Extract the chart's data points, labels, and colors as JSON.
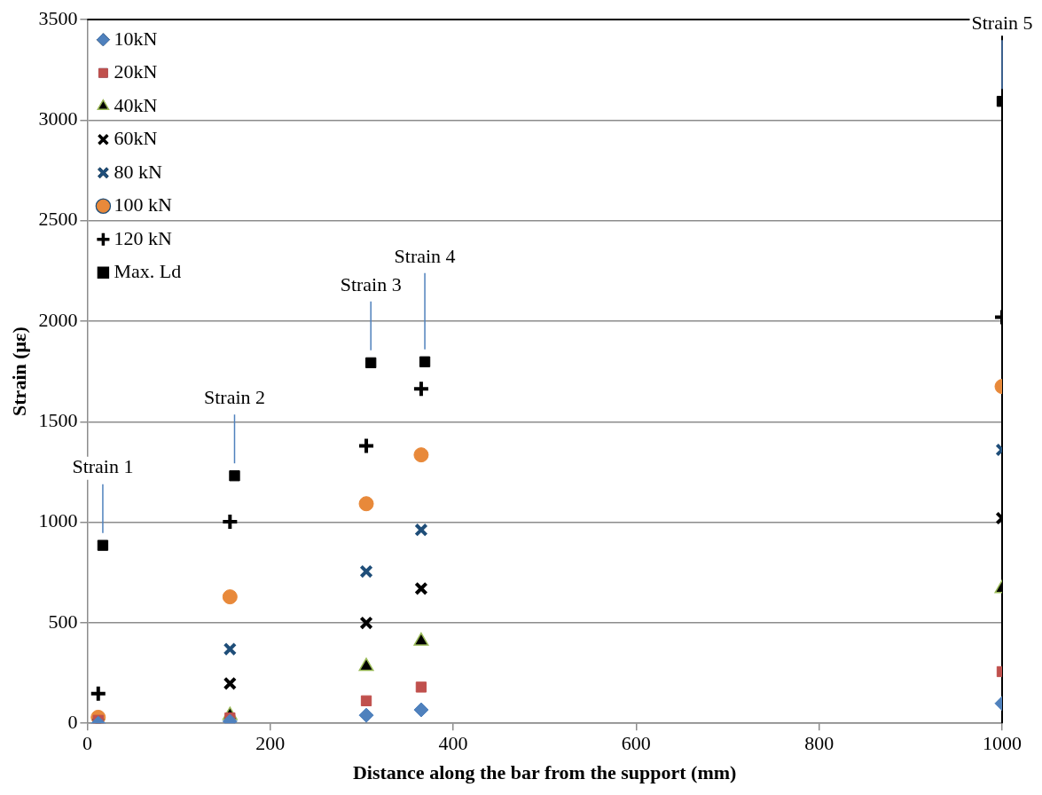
{
  "chart_data": {
    "type": "scatter",
    "xlabel": "Distance along the bar from the support (mm)",
    "ylabel": "Strain (με)",
    "xlim": [
      0,
      1000
    ],
    "xticks": [
      0,
      200,
      400,
      600,
      800,
      1000
    ],
    "ylim": [
      0,
      3500
    ],
    "yticks": [
      0,
      500,
      1000,
      1500,
      2000,
      2500,
      3000,
      3500
    ],
    "grid": "y",
    "legend": "top left",
    "series": [
      {
        "name": "10kN",
        "color": "#4f81bd",
        "marker": "diamond",
        "x": [
          12,
          156,
          305,
          365,
          1000
        ],
        "values": [
          0,
          10,
          40,
          67,
          99
        ]
      },
      {
        "name": "20kN",
        "color": "#c0504d",
        "marker": "square",
        "x": [
          12,
          156,
          305,
          365,
          1000
        ],
        "values": [
          15,
          27,
          112,
          180,
          257
        ]
      },
      {
        "name": "40kN",
        "color": "#000000",
        "marker": "triangle",
        "x": [
          null,
          156,
          305,
          365,
          1000
        ],
        "values": [
          null,
          40,
          283,
          409,
          670
        ]
      },
      {
        "name": "60kN",
        "color": "#000000",
        "marker": "cross",
        "x": [
          null,
          156,
          305,
          365,
          1000
        ],
        "values": [
          null,
          198,
          499,
          670,
          1020
        ]
      },
      {
        "name": "80 kN",
        "color": "#1f4e79",
        "marker": "cross",
        "x": [
          12,
          156,
          305,
          365,
          1000
        ],
        "values": [
          0,
          369,
          755,
          962,
          1360
        ]
      },
      {
        "name": "100 kN",
        "color": "#e8893a",
        "marker": "circle",
        "x": [
          12,
          156,
          305,
          365,
          1000
        ],
        "values": [
          30,
          629,
          1092,
          1335,
          1675
        ]
      },
      {
        "name": "120 kN",
        "color": "#000000",
        "marker": "plus",
        "x": [
          12,
          156,
          305,
          365,
          1000
        ],
        "values": [
          148,
          1002,
          1380,
          1663,
          2020
        ]
      },
      {
        "name": "Max. Ld",
        "color": "#000000",
        "marker": "square",
        "x": [
          17,
          161,
          310,
          369,
          1000
        ],
        "values": [
          885,
          1231,
          1793,
          1798,
          3093
        ]
      }
    ],
    "annotations": [
      "Strain 1",
      "Strain 2",
      "Strain 3",
      "Strain 4",
      "Strain 5"
    ]
  }
}
